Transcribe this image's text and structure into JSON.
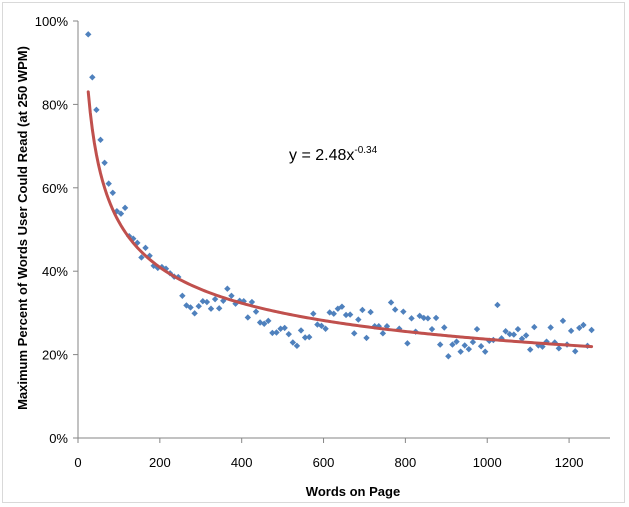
{
  "chart_data": {
    "type": "scatter",
    "xlabel": "Words on Page",
    "ylabel": "Maximum Percent of Words User Could Read (at 250 WPM)",
    "xlim": [
      0,
      1300
    ],
    "ylim": [
      0,
      100
    ],
    "x_ticks": [
      0,
      200,
      400,
      600,
      800,
      1000,
      1200
    ],
    "y_ticks": [
      0,
      20,
      40,
      60,
      80,
      100
    ],
    "x_tick_labels": [
      "0",
      "200",
      "400",
      "600",
      "800",
      "1000",
      "1200"
    ],
    "y_tick_labels": [
      "0%",
      "20%",
      "40%",
      "60%",
      "80%",
      "100%"
    ],
    "grid": false,
    "colors": {
      "points": "#4f81bd",
      "trendline": "#c0504d"
    },
    "trendline": {
      "type": "power",
      "coefficient": 2.48,
      "exponent": -0.34,
      "x_range": [
        25,
        1255
      ],
      "equation_base": "y = 2.48x",
      "equation_exponent": "-0.34"
    },
    "series": [
      {
        "points": [
          [
            25,
            96.8
          ],
          [
            35,
            86.5
          ],
          [
            45,
            78.7
          ],
          [
            55,
            71.5
          ],
          [
            65,
            66.0
          ],
          [
            75,
            61.0
          ],
          [
            85,
            58.8
          ],
          [
            95,
            54.4
          ],
          [
            105,
            53.8
          ],
          [
            115,
            55.2
          ],
          [
            125,
            48.4
          ],
          [
            135,
            47.8
          ],
          [
            145,
            46.8
          ],
          [
            155,
            43.3
          ],
          [
            165,
            45.6
          ],
          [
            175,
            43.7
          ],
          [
            185,
            41.3
          ],
          [
            195,
            40.8
          ],
          [
            205,
            41.0
          ],
          [
            215,
            40.6
          ],
          [
            225,
            39.5
          ],
          [
            235,
            38.7
          ],
          [
            245,
            38.6
          ],
          [
            255,
            34.1
          ],
          [
            265,
            31.8
          ],
          [
            275,
            31.3
          ],
          [
            285,
            29.9
          ],
          [
            295,
            31.6
          ],
          [
            305,
            32.8
          ],
          [
            315,
            32.6
          ],
          [
            325,
            31.0
          ],
          [
            335,
            33.3
          ],
          [
            345,
            31.1
          ],
          [
            355,
            32.9
          ],
          [
            365,
            35.8
          ],
          [
            375,
            34.1
          ],
          [
            385,
            32.2
          ],
          [
            395,
            32.9
          ],
          [
            405,
            32.8
          ],
          [
            415,
            28.9
          ],
          [
            425,
            32.6
          ],
          [
            435,
            30.3
          ],
          [
            445,
            27.7
          ],
          [
            455,
            27.4
          ],
          [
            465,
            28.1
          ],
          [
            475,
            25.2
          ],
          [
            485,
            25.3
          ],
          [
            495,
            26.2
          ],
          [
            505,
            26.4
          ],
          [
            515,
            24.9
          ],
          [
            525,
            22.9
          ],
          [
            535,
            22.1
          ],
          [
            545,
            25.8
          ],
          [
            555,
            24.1
          ],
          [
            565,
            24.2
          ],
          [
            575,
            29.8
          ],
          [
            585,
            27.2
          ],
          [
            595,
            26.9
          ],
          [
            605,
            26.2
          ],
          [
            615,
            30.1
          ],
          [
            625,
            29.8
          ],
          [
            635,
            31.0
          ],
          [
            645,
            31.5
          ],
          [
            655,
            29.5
          ],
          [
            665,
            29.6
          ],
          [
            675,
            25.1
          ],
          [
            685,
            28.4
          ],
          [
            695,
            30.7
          ],
          [
            705,
            24.0
          ],
          [
            715,
            30.2
          ],
          [
            725,
            26.8
          ],
          [
            735,
            26.8
          ],
          [
            745,
            25.1
          ],
          [
            755,
            26.8
          ],
          [
            765,
            32.5
          ],
          [
            775,
            30.8
          ],
          [
            785,
            26.2
          ],
          [
            795,
            30.3
          ],
          [
            805,
            22.7
          ],
          [
            815,
            28.7
          ],
          [
            825,
            25.5
          ],
          [
            835,
            29.3
          ],
          [
            845,
            28.8
          ],
          [
            855,
            28.7
          ],
          [
            865,
            26.1
          ],
          [
            875,
            28.8
          ],
          [
            885,
            22.4
          ],
          [
            895,
            26.5
          ],
          [
            905,
            19.6
          ],
          [
            915,
            22.4
          ],
          [
            925,
            23.1
          ],
          [
            935,
            20.7
          ],
          [
            945,
            22.2
          ],
          [
            955,
            21.3
          ],
          [
            965,
            23.0
          ],
          [
            975,
            26.1
          ],
          [
            985,
            22.0
          ],
          [
            995,
            20.7
          ],
          [
            1005,
            23.3
          ],
          [
            1015,
            23.5
          ],
          [
            1025,
            31.9
          ],
          [
            1035,
            23.9
          ],
          [
            1045,
            25.6
          ],
          [
            1055,
            24.9
          ],
          [
            1065,
            24.8
          ],
          [
            1075,
            26.1
          ],
          [
            1085,
            23.8
          ],
          [
            1095,
            24.6
          ],
          [
            1105,
            21.2
          ],
          [
            1115,
            26.6
          ],
          [
            1125,
            22.2
          ],
          [
            1135,
            21.9
          ],
          [
            1145,
            23.1
          ],
          [
            1155,
            26.5
          ],
          [
            1165,
            22.9
          ],
          [
            1175,
            21.5
          ],
          [
            1185,
            28.1
          ],
          [
            1195,
            22.4
          ],
          [
            1205,
            25.7
          ],
          [
            1215,
            20.8
          ],
          [
            1225,
            26.4
          ],
          [
            1235,
            27.1
          ],
          [
            1245,
            22.1
          ],
          [
            1255,
            25.9
          ]
        ]
      }
    ]
  }
}
